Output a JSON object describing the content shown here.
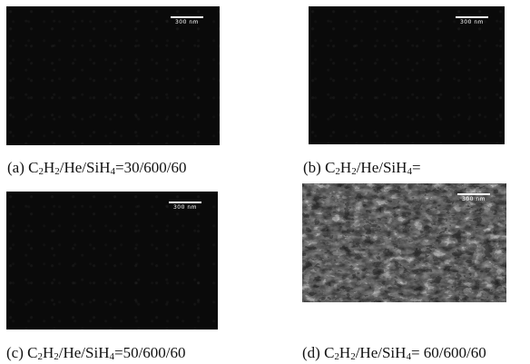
{
  "figure": {
    "panels": [
      {
        "id": "a",
        "scale_label": "300 nm",
        "caption": {
          "prefix": "(a) C",
          "sub1": "2",
          "mid1": "H",
          "sub2": "2",
          "mid2": "/He/SiH",
          "sub3": "4",
          "ratio": "=30/600/60"
        }
      },
      {
        "id": "b",
        "scale_label": "300 nm",
        "caption": {
          "prefix": "(b) C",
          "sub1": "2",
          "mid1": "H",
          "sub2": "2",
          "mid2": "/He/SiH",
          "sub3": "4",
          "ratio": "="
        }
      },
      {
        "id": "c",
        "scale_label": "300 nm",
        "caption": {
          "prefix": "(c) C",
          "sub1": "2",
          "mid1": "H",
          "sub2": "2",
          "mid2": "/He/SiH",
          "sub3": "4",
          "ratio": "=50/600/60"
        }
      },
      {
        "id": "d",
        "scale_label": "300 nm",
        "caption": {
          "prefix": "(d) C",
          "sub1": "2",
          "mid1": "H",
          "sub2": "2",
          "mid2": "/He/SiH",
          "sub3": "4",
          "ratio": "= 60/600/60"
        }
      }
    ],
    "colors": {
      "panel_background": "#0a0a0a",
      "textured_panel_light": "#d8d8d8",
      "scale_bar": "#ffffff",
      "caption_text": "#111111"
    }
  }
}
